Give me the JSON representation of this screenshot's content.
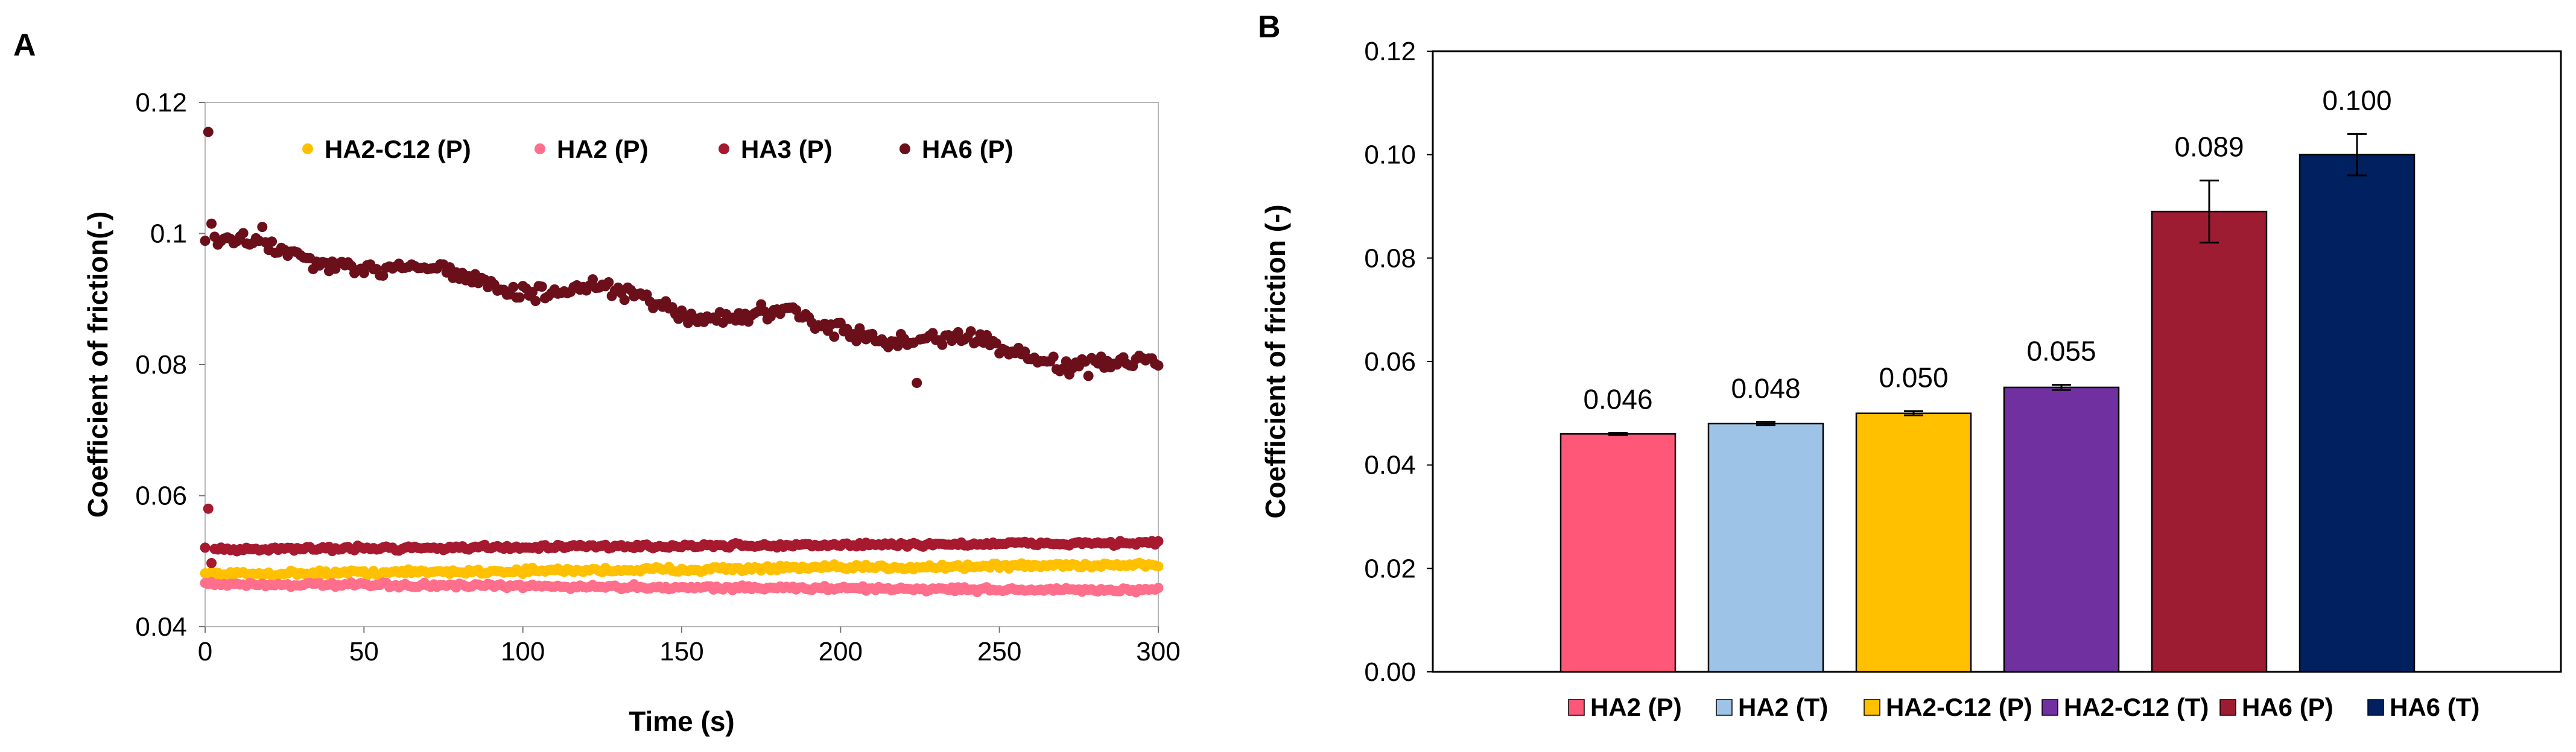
{
  "panels": {
    "a": "A",
    "b": "B"
  },
  "chart_data": [
    {
      "type": "scatter",
      "panel": "A",
      "title": "",
      "xlabel": "Time (s)",
      "ylabel": "Coefficient of friction(-)",
      "xlim": [
        0,
        300
      ],
      "ylim": [
        0.04,
        0.12
      ],
      "xticks": [
        "0",
        "50",
        "100",
        "150",
        "200",
        "250",
        "300"
      ],
      "yticks": [
        "0.04",
        "0.06",
        "0.08",
        "0.1",
        "0.12"
      ],
      "legend": [
        "HA2-C12 (P)",
        "HA2 (P)",
        "HA3 (P)",
        "HA6 (P)"
      ],
      "series": [
        {
          "name": "HA2-C12 (P)",
          "color": "#FFC000",
          "t": [
            0,
            300
          ],
          "start": 0.048,
          "end": 0.0495,
          "noise": 0.0006,
          "spikes": [
            [
              1,
              0.0475
            ]
          ]
        },
        {
          "name": "HA2 (P)",
          "color": "#FF6E8A",
          "t": [
            0,
            300
          ],
          "start": 0.0465,
          "end": 0.0455,
          "noise": 0.0005,
          "spikes": []
        },
        {
          "name": "HA3 (P)",
          "color": "#A6192E",
          "t": [
            0,
            300
          ],
          "start": 0.0518,
          "end": 0.0528,
          "noise": 0.0005,
          "spikes": [
            [
              1,
              0.058
            ],
            [
              2,
              0.0497
            ]
          ]
        },
        {
          "name": "HA6 (P)",
          "color": "#6B0F1A",
          "t": [
            0,
            300
          ],
          "start": 0.0985,
          "end": 0.079,
          "noise": 0.0018,
          "spikes": [
            [
              1,
              0.1155
            ],
            [
              2,
              0.1015
            ],
            [
              224,
              0.0772
            ],
            [
              18,
              0.101
            ]
          ]
        }
      ]
    },
    {
      "type": "bar",
      "panel": "B",
      "title": "",
      "xlabel": "",
      "ylabel": "Coefficient of friction (-)",
      "ylim": [
        0,
        0.12
      ],
      "yticks": [
        "0.00",
        "0.02",
        "0.04",
        "0.06",
        "0.08",
        "0.10",
        "0.12"
      ],
      "categories": [
        "HA2 (P)",
        "HA2 (T)",
        "HA2-C12 (P)",
        "HA2-C12 (T)",
        "HA6 (P)",
        "HA6 (T)"
      ],
      "values": [
        0.046,
        0.048,
        0.05,
        0.055,
        0.089,
        0.1
      ],
      "errors": [
        0.0002,
        0.0003,
        0.0004,
        0.0005,
        0.006,
        0.004
      ],
      "labels": [
        "0.046",
        "0.048",
        "0.050",
        "0.055",
        "0.089",
        "0.100"
      ],
      "colors": [
        "#FF5777",
        "#9DC3E6",
        "#FFC000",
        "#7030A0",
        "#9E1C32",
        "#002060"
      ]
    }
  ]
}
